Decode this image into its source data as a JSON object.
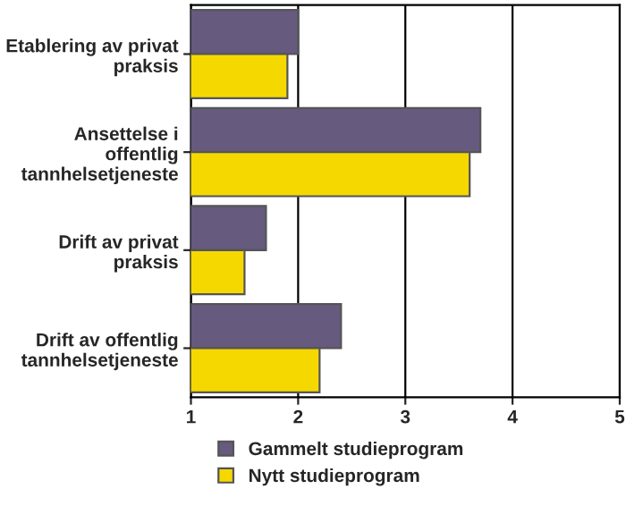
{
  "chart_data": {
    "type": "bar",
    "orientation": "horizontal",
    "categories": [
      "Etablering av privat\npraksis",
      "Ansettelse i\noffentlig\ntannhelsetjeneste",
      "Drift av privat\npraksis",
      "Drift av offentlig\ntannhelsetjeneste"
    ],
    "series": [
      {
        "name": "Gammelt studieprogram",
        "color": "#665a7e",
        "values": [
          2.0,
          3.7,
          1.7,
          2.4
        ]
      },
      {
        "name": "Nytt studieprogram",
        "color": "#f5d800",
        "values": [
          1.9,
          3.6,
          1.5,
          2.2
        ]
      }
    ],
    "xlim": [
      1,
      5
    ],
    "xticks": [
      1,
      2,
      3,
      4,
      5
    ],
    "grid": "x",
    "legend": "bottom"
  }
}
